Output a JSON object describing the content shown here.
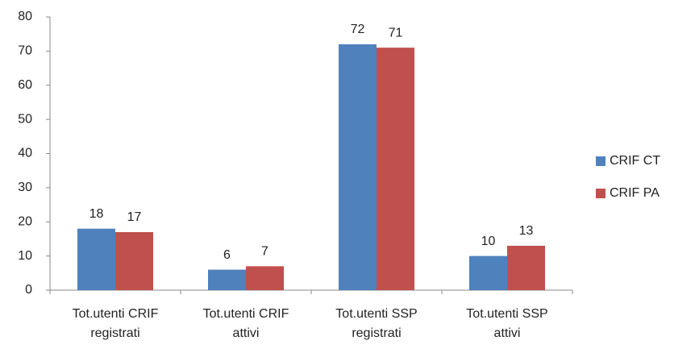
{
  "chart_data": {
    "type": "bar",
    "categories": [
      [
        "Tot.utenti CRIF",
        "registrati"
      ],
      [
        "Tot.utenti CRIF",
        "attivi"
      ],
      [
        "Tot.utenti SSP",
        "registrati"
      ],
      [
        "Tot.utenti SSP",
        "attivi"
      ]
    ],
    "series": [
      {
        "name": "CRIF CT",
        "color": "#4f81bd",
        "values": [
          18,
          6,
          72,
          10
        ]
      },
      {
        "name": "CRIF PA",
        "color": "#c0504d",
        "values": [
          17,
          7,
          71,
          13
        ]
      }
    ],
    "ylim": [
      0,
      80
    ],
    "yticks": [
      0,
      10,
      20,
      30,
      40,
      50,
      60,
      70,
      80
    ],
    "grid": false,
    "legend": "right"
  }
}
